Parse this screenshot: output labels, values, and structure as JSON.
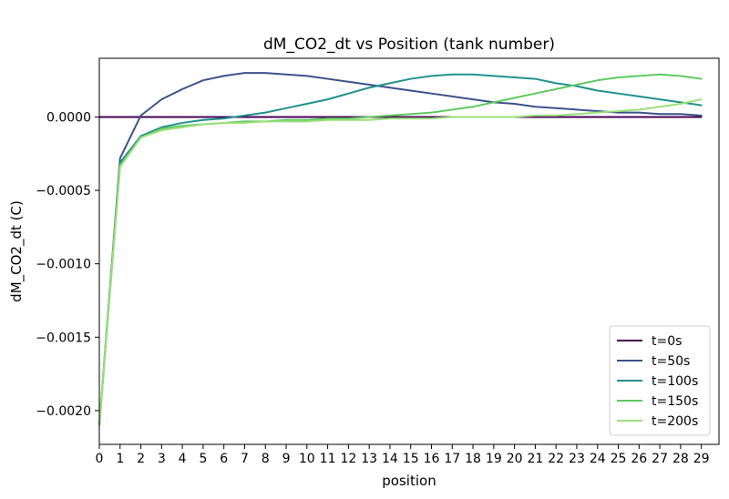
{
  "chart_data": {
    "type": "line",
    "title": "dM_CO2_dt vs Position (tank number)",
    "xlabel": "position",
    "ylabel": "dM_CO2_dt (C)",
    "x": [
      0,
      1,
      2,
      3,
      4,
      5,
      6,
      7,
      8,
      9,
      10,
      11,
      12,
      13,
      14,
      15,
      16,
      17,
      18,
      19,
      20,
      21,
      22,
      23,
      24,
      25,
      26,
      27,
      28,
      29
    ],
    "xticks": [
      "0",
      "1",
      "2",
      "3",
      "4",
      "5",
      "6",
      "7",
      "8",
      "9",
      "10",
      "11",
      "12",
      "13",
      "14",
      "15",
      "16",
      "17",
      "18",
      "19",
      "20",
      "21",
      "22",
      "23",
      "24",
      "25",
      "26",
      "27",
      "28",
      "29"
    ],
    "yticks": [
      {
        "value": 0.0,
        "label": "0.0000"
      },
      {
        "value": -0.0005,
        "label": "−0.0005"
      },
      {
        "value": -0.001,
        "label": "−0.0010"
      },
      {
        "value": -0.0015,
        "label": "−0.0015"
      },
      {
        "value": -0.002,
        "label": "−0.0020"
      }
    ],
    "xlim": [
      0,
      29.85
    ],
    "ylim": [
      -0.00223,
      0.0004
    ],
    "grid": false,
    "legend_position": "lower-right",
    "series": [
      {
        "name": "t=0s",
        "color": "#440154",
        "values": [
          0,
          0,
          0,
          0,
          0,
          0,
          0,
          0,
          0,
          0,
          0,
          0,
          0,
          0,
          0,
          0,
          0,
          0,
          0,
          0,
          0,
          0,
          0,
          0,
          0,
          0,
          0,
          0,
          0,
          0
        ]
      },
      {
        "name": "t=50s",
        "color": "#3b528b",
        "values": [
          -0.0021,
          -0.00028,
          1e-05,
          0.00012,
          0.00019,
          0.00025,
          0.00028,
          0.0003,
          0.0003,
          0.00029,
          0.00028,
          0.00026,
          0.00024,
          0.00022,
          0.0002,
          0.00018,
          0.00016,
          0.00014,
          0.00012,
          0.0001,
          9e-05,
          7e-05,
          6e-05,
          5e-05,
          4e-05,
          3e-05,
          3e-05,
          2e-05,
          2e-05,
          1e-05
        ]
      },
      {
        "name": "t=100s",
        "color": "#21918c",
        "values": [
          -0.0021,
          -0.00031,
          -0.00013,
          -7e-05,
          -4e-05,
          -2e-05,
          -1e-05,
          1e-05,
          3e-05,
          6e-05,
          9e-05,
          0.00012,
          0.00016,
          0.0002,
          0.00023,
          0.00026,
          0.00028,
          0.00029,
          0.00029,
          0.00028,
          0.00027,
          0.00026,
          0.00023,
          0.00021,
          0.00018,
          0.00016,
          0.00014,
          0.00012,
          0.0001,
          8e-05
        ]
      },
      {
        "name": "t=150s",
        "color": "#5ec962",
        "values": [
          -0.0021,
          -0.00033,
          -0.00014,
          -8e-05,
          -6e-05,
          -5e-05,
          -4e-05,
          -3e-05,
          -3e-05,
          -2e-05,
          -2e-05,
          -1e-05,
          -1e-05,
          0,
          1e-05,
          2e-05,
          3e-05,
          5e-05,
          7e-05,
          0.0001,
          0.00013,
          0.00016,
          0.00019,
          0.00022,
          0.00025,
          0.00027,
          0.00028,
          0.00029,
          0.00028,
          0.00026
        ]
      },
      {
        "name": "t=200s",
        "color": "#9be07a",
        "values": [
          -0.0021,
          -0.00034,
          -0.00014,
          -9e-05,
          -7e-05,
          -5e-05,
          -4e-05,
          -4e-05,
          -3e-05,
          -3e-05,
          -3e-05,
          -2e-05,
          -2e-05,
          -2e-05,
          -1e-05,
          -1e-05,
          -1e-05,
          0,
          0,
          0,
          0,
          1e-05,
          1e-05,
          2e-05,
          3e-05,
          4e-05,
          5e-05,
          7e-05,
          9e-05,
          0.00012
        ]
      }
    ]
  }
}
